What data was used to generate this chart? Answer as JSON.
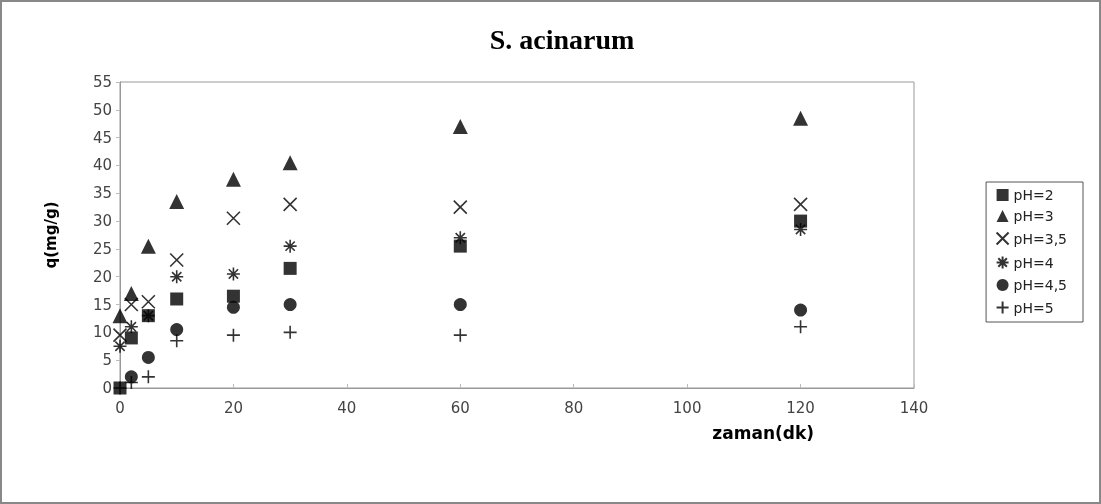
{
  "chart_data": {
    "type": "scatter",
    "title": "S. acinarum",
    "xlabel": "zaman(dk)",
    "ylabel": "q(mg/g)",
    "x": [
      0,
      2,
      5,
      10,
      20,
      30,
      60,
      120
    ],
    "series": [
      {
        "name": "pH=2",
        "color": "#000000",
        "marker": "square",
        "values": [
          0,
          9,
          13,
          16,
          16.5,
          21.5,
          25.5,
          30
        ]
      },
      {
        "name": "pH=3",
        "color": "#000000",
        "marker": "triangle",
        "values": [
          13,
          17,
          25.5,
          33.5,
          37.5,
          40.5,
          47,
          48.5
        ]
      },
      {
        "name": "pH=3,5",
        "color": "#000000",
        "marker": "cross",
        "values": [
          9.5,
          15,
          15.5,
          23,
          30.5,
          33,
          32.5,
          33
        ]
      },
      {
        "name": "pH=4",
        "color": "#000000",
        "values": [
          7.5,
          11,
          13,
          20,
          20.5,
          25.5,
          27,
          28.5
        ]
      },
      {
        "name": "pH=4,5",
        "color": "#000000",
        "marker": "circle",
        "values": [
          null,
          2,
          5.5,
          10.5,
          14.5,
          15,
          15,
          14
        ]
      },
      {
        "name": "pH=5",
        "color": "#000000",
        "marker": "plus",
        "values": [
          0,
          1,
          2,
          8.5,
          9.5,
          10,
          9.5,
          11
        ]
      }
    ],
    "xlim": [
      0,
      140
    ],
    "xticks": [
      0,
      20,
      40,
      60,
      80,
      100,
      120,
      140
    ],
    "ylim": [
      0,
      55
    ],
    "yticks": [
      0,
      5,
      10,
      15,
      20,
      25,
      30,
      35,
      40,
      45,
      50,
      55
    ],
    "grid": false,
    "legend": "right"
  }
}
